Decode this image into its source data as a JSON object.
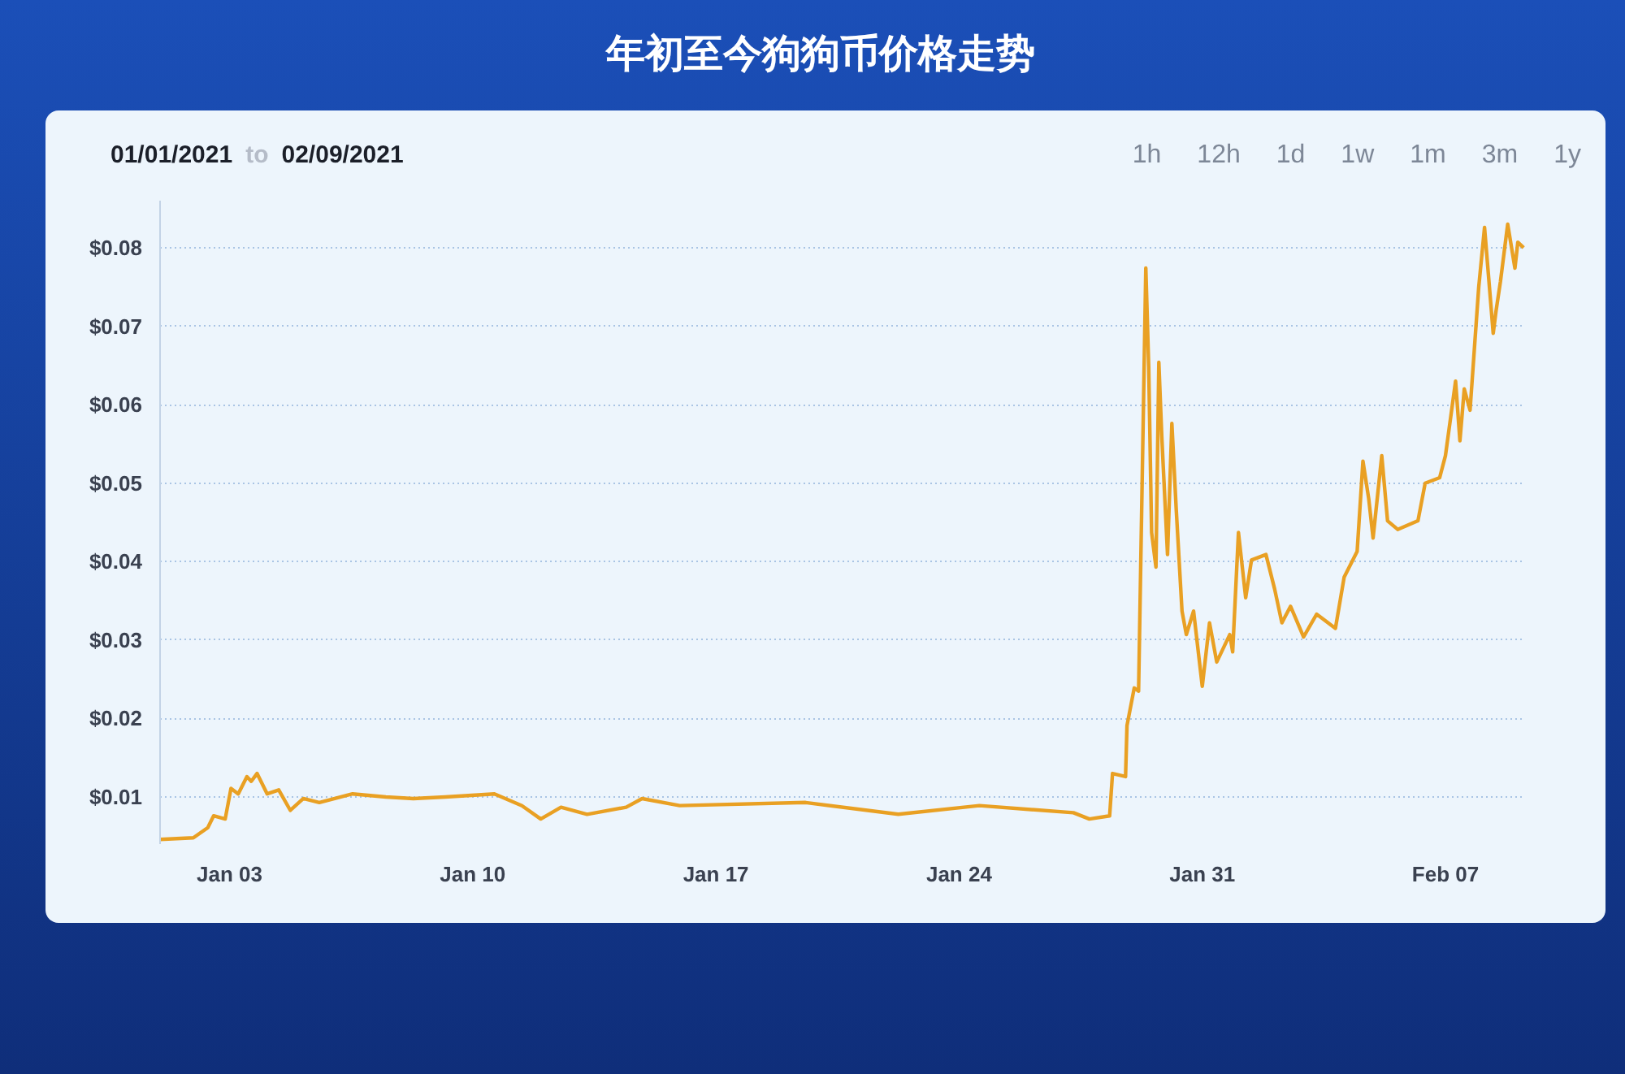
{
  "chart_data": {
    "type": "line",
    "title": "年初至今狗狗币价格走势",
    "annotations": [
      "01/01/2021",
      "to",
      "02/09/2021",
      "1h",
      "12h",
      "1d",
      "1w",
      "1m",
      "3m",
      "1y"
    ],
    "xlim": [
      "2021-01-01T00:00",
      "2021-02-09T07:00"
    ],
    "xticks": [
      {
        "value": "2021-01-03",
        "label": "Jan 03"
      },
      {
        "value": "2021-01-10",
        "label": "Jan 10"
      },
      {
        "value": "2021-01-17",
        "label": "Jan 17"
      },
      {
        "value": "2021-01-24",
        "label": "Jan 24"
      },
      {
        "value": "2021-01-31",
        "label": "Jan 31"
      },
      {
        "value": "2021-02-07",
        "label": "Feb 07"
      }
    ],
    "ylim": [
      0.004,
      0.086
    ],
    "yticks": [
      {
        "value": 0.01,
        "label": "$0.01"
      },
      {
        "value": 0.02,
        "label": "$0.02"
      },
      {
        "value": 0.03,
        "label": "$0.03"
      },
      {
        "value": 0.04,
        "label": "$0.04"
      },
      {
        "value": 0.05,
        "label": "$0.05"
      },
      {
        "value": 0.06,
        "label": "$0.06"
      },
      {
        "value": 0.07,
        "label": "$0.07"
      },
      {
        "value": 0.08,
        "label": "$0.08"
      }
    ],
    "grid": "y",
    "marker": "none",
    "line_style": "solid",
    "series": [
      {
        "color": "#e9a023",
        "x": [
          "2021-01-01T00:00",
          "2021-01-01T23:00",
          "2021-01-02T09:00",
          "2021-01-02T13:00",
          "2021-01-02T21:00",
          "2021-01-03T01:00",
          "2021-01-03T06:00",
          "2021-01-03T12:00",
          "2021-01-03T15:00",
          "2021-01-03T19:00",
          "2021-01-04T02:00",
          "2021-01-04T10:00",
          "2021-01-04T18:00",
          "2021-01-05T03:00",
          "2021-01-05T14:00",
          "2021-01-06T13:00",
          "2021-01-07T12:00",
          "2021-01-08T07:00",
          "2021-01-09T05:00",
          "2021-01-10T15:00",
          "2021-01-11T10:00",
          "2021-01-11T23:00",
          "2021-01-12T13:00",
          "2021-01-13T07:00",
          "2021-01-14T10:00",
          "2021-01-14T21:00",
          "2021-01-15T23:00",
          "2021-01-19T14:00",
          "2021-01-22T06:00",
          "2021-01-24T14:00",
          "2021-01-27T07:00",
          "2021-01-27T18:00",
          "2021-01-28T08:00",
          "2021-01-28T10:00",
          "2021-01-28T19:00",
          "2021-01-28T20:00",
          "2021-01-29T01:00",
          "2021-01-29T04:00",
          "2021-01-29T09:00",
          "2021-01-29T11:00",
          "2021-01-29T13:00",
          "2021-01-29T16:00",
          "2021-01-29T18:00",
          "2021-01-29T20:00",
          "2021-01-30T00:00",
          "2021-01-30T03:00",
          "2021-01-30T06:00",
          "2021-01-30T10:00",
          "2021-01-30T13:00",
          "2021-01-30T18:00",
          "2021-01-31T00:00",
          "2021-01-31T05:00",
          "2021-01-31T10:00",
          "2021-01-31T19:00",
          "2021-01-31T21:00",
          "2021-02-01T01:00",
          "2021-02-01T06:00",
          "2021-02-01T10:00",
          "2021-02-01T20:00",
          "2021-02-02T02:00",
          "2021-02-02T07:00",
          "2021-02-02T13:00",
          "2021-02-02T22:00",
          "2021-02-03T07:00",
          "2021-02-03T20:00",
          "2021-02-04T02:00",
          "2021-02-04T11:00",
          "2021-02-04T15:00",
          "2021-02-04T19:00",
          "2021-02-04T22:00",
          "2021-02-05T04:00",
          "2021-02-05T08:00",
          "2021-02-05T15:00",
          "2021-02-06T05:00",
          "2021-02-06T10:00",
          "2021-02-06T20:00",
          "2021-02-07T00:00",
          "2021-02-07T07:00",
          "2021-02-07T10:00",
          "2021-02-07T13:00",
          "2021-02-07T17:00",
          "2021-02-07T23:00",
          "2021-02-08T03:00",
          "2021-02-08T09:00",
          "2021-02-08T11:00",
          "2021-02-08T14:00",
          "2021-02-08T19:00",
          "2021-02-09T00:00",
          "2021-02-09T02:00",
          "2021-02-09T06:00"
        ],
        "values": [
          0.0046,
          0.0048,
          0.0061,
          0.0076,
          0.0072,
          0.0111,
          0.0104,
          0.0126,
          0.012,
          0.013,
          0.0104,
          0.0109,
          0.0083,
          0.0098,
          0.0093,
          0.0104,
          0.01,
          0.0098,
          0.01,
          0.0104,
          0.0089,
          0.0072,
          0.0087,
          0.0078,
          0.0087,
          0.0098,
          0.0089,
          0.0093,
          0.0078,
          0.0089,
          0.008,
          0.0072,
          0.0076,
          0.013,
          0.0126,
          0.0191,
          0.0239,
          0.0235,
          0.0774,
          0.0648,
          0.0437,
          0.0393,
          0.0654,
          0.0561,
          0.0409,
          0.0576,
          0.0467,
          0.0337,
          0.0307,
          0.0337,
          0.0241,
          0.0322,
          0.0272,
          0.0307,
          0.0285,
          0.0437,
          0.0354,
          0.0402,
          0.0409,
          0.0365,
          0.0322,
          0.0343,
          0.0304,
          0.0333,
          0.0315,
          0.038,
          0.0413,
          0.0528,
          0.048,
          0.043,
          0.0535,
          0.0452,
          0.0441,
          0.0452,
          0.05,
          0.0507,
          0.0535,
          0.063,
          0.0554,
          0.062,
          0.0593,
          0.075,
          0.0826,
          0.0691,
          0.072,
          0.0757,
          0.083,
          0.0774,
          0.0807,
          0.08
        ]
      }
    ]
  }
}
